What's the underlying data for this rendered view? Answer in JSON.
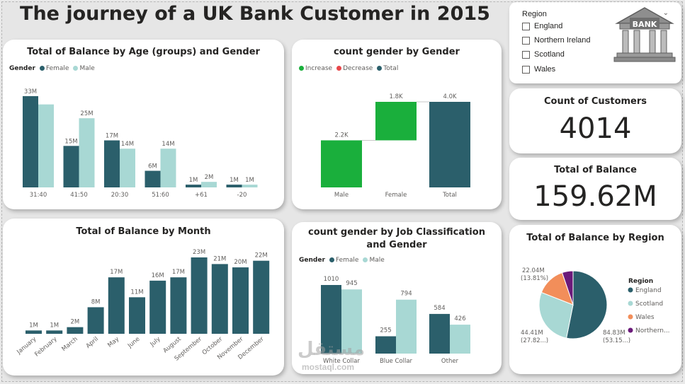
{
  "title": "The journey of a UK Bank Customer in 2015",
  "colors": {
    "dark": "#2b5f6b",
    "light": "#a8d8d4",
    "green": "#1aaf3c",
    "red": "#e8464a",
    "orange": "#f28e5a",
    "purple": "#6b1a7a"
  },
  "age_chart": {
    "title": "Total of Balance by Age (groups) and Gender",
    "legend_title": "Gender",
    "legend": [
      "Female",
      "Male"
    ],
    "chart_data": {
      "type": "bar",
      "categories": [
        "31:40",
        "41:50",
        "20:30",
        "51:60",
        "+61",
        "-20"
      ],
      "series": [
        {
          "name": "Female",
          "values": [
            33,
            15,
            17,
            6,
            1,
            1
          ],
          "labels": [
            "33M",
            "15M",
            "17M",
            "6M",
            "1M",
            "1M"
          ]
        },
        {
          "name": "Male",
          "values": [
            30,
            25,
            14,
            14,
            2,
            1
          ],
          "labels": [
            "",
            "25M",
            "14M",
            "14M",
            "2M",
            "1M"
          ]
        }
      ],
      "ylim": [
        0,
        34
      ]
    }
  },
  "waterfall": {
    "title": "count gender by Gender",
    "legend": [
      "Increase",
      "Decrease",
      "Total"
    ],
    "chart_data": {
      "type": "bar",
      "categories": [
        "Male",
        "Female",
        "Total"
      ],
      "values": [
        2.2,
        1.8,
        4.0
      ],
      "labels": [
        "2.2K",
        "1.8K",
        "4.0K"
      ],
      "ylim": [
        0,
        4.0
      ]
    }
  },
  "region_slicer": {
    "title": "Region",
    "items": [
      "England",
      "Northern Ireland",
      "Scotland",
      "Wales"
    ],
    "logo_text": "BANK"
  },
  "kpi_customers": {
    "label": "Count of Customers",
    "value": "4014"
  },
  "kpi_balance": {
    "label": "Total of Balance",
    "value": "159.62M"
  },
  "month_chart": {
    "title": "Total of Balance by Month",
    "chart_data": {
      "type": "bar",
      "categories": [
        "January",
        "February",
        "March",
        "April",
        "May",
        "June",
        "July",
        "August",
        "September",
        "October",
        "November",
        "December"
      ],
      "values": [
        1,
        1,
        2,
        8,
        17,
        11,
        16,
        17,
        23,
        21,
        20,
        22
      ],
      "labels": [
        "1M",
        "1M",
        "2M",
        "8M",
        "17M",
        "11M",
        "16M",
        "17M",
        "23M",
        "21M",
        "20M",
        "22M"
      ],
      "ylim": [
        0,
        23
      ]
    }
  },
  "job_chart": {
    "title": "count gender by Job Classification and Gender",
    "legend_title": "Gender",
    "legend": [
      "Female",
      "Male"
    ],
    "chart_data": {
      "type": "bar",
      "categories": [
        "White Collar",
        "Blue Collar",
        "Other"
      ],
      "series": [
        {
          "name": "Female",
          "values": [
            1010,
            255,
            584
          ]
        },
        {
          "name": "Male",
          "values": [
            945,
            794,
            426
          ]
        }
      ],
      "ylim": [
        0,
        1010
      ]
    }
  },
  "region_chart": {
    "title": "Total of Balance by Region",
    "legend_title": "Region",
    "legend": [
      "England",
      "Scotland",
      "Wales",
      "Northern..."
    ],
    "chart_data": {
      "type": "pie",
      "categories": [
        "England",
        "Scotland",
        "Wales",
        "Northern Ireland"
      ],
      "values": [
        84.83,
        44.41,
        22.04,
        8.34
      ],
      "labels": [
        [
          "84.83M",
          "(53.15...)"
        ],
        [
          "44.41M",
          "(27.82...)"
        ],
        [
          "22.04M",
          "(13.81%)"
        ],
        [
          "",
          ""
        ]
      ]
    }
  },
  "watermark": {
    "arabic": "مستقل",
    "latin": "mostaql.com"
  }
}
